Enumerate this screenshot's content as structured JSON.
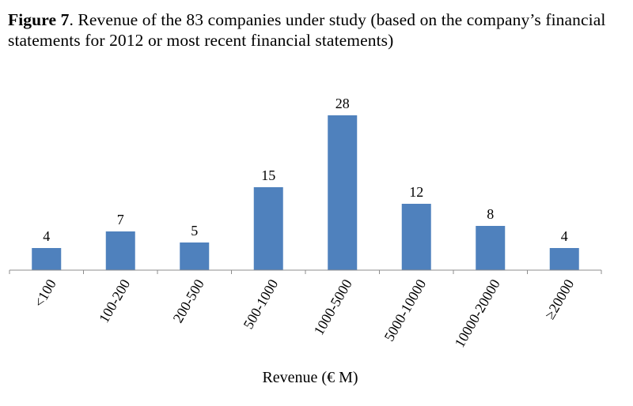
{
  "figure": {
    "label": "Figure 7",
    "caption_text": ". Revenue of the 83 companies under study (based on the company’s financial statements for 2012 or most recent financial statements)"
  },
  "chart_data": {
    "type": "bar",
    "title": "Revenue of the 83 companies under study (based on the company’s financial statements for 2012 or most recent financial statements)",
    "categories": [
      "<100",
      "100-200",
      "200-500",
      "500-1000",
      "1000-5000",
      "5000-10000",
      "10000-20000",
      "≥20000"
    ],
    "values": [
      4,
      7,
      5,
      15,
      28,
      12,
      8,
      4
    ],
    "xlabel": "Revenue (€ M)",
    "ylabel": "",
    "ylim": [
      0,
      28
    ],
    "grid": false,
    "legend": "none",
    "bar_color": "#4f81bd"
  }
}
